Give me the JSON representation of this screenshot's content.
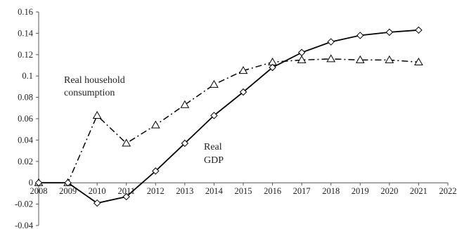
{
  "chart_data": {
    "type": "line",
    "title": "",
    "xlabel": "",
    "ylabel": "",
    "x": [
      2008,
      2009,
      2010,
      2011,
      2012,
      2013,
      2014,
      2015,
      2016,
      2017,
      2018,
      2019,
      2020,
      2021
    ],
    "xlim": [
      2008,
      2022
    ],
    "ylim": [
      -0.04,
      0.16
    ],
    "x_ticks": [
      "2008",
      "2009",
      "2010",
      "2011",
      "2012",
      "2013",
      "2014",
      "2015",
      "2016",
      "2017",
      "2018",
      "2019",
      "2020",
      "2021",
      "2022"
    ],
    "y_ticks": [
      "-0.04",
      "-0.02",
      "0",
      "0.02",
      "0.04",
      "0.06",
      "0.08",
      "0.1",
      "0.12",
      "0.14",
      "0.16"
    ],
    "grid": false,
    "series": [
      {
        "name": "Real household consumption",
        "label_lines": [
          "Real household",
          "consumption"
        ],
        "line_style": "dash-dot",
        "marker": "triangle",
        "color": "#000000",
        "values": [
          0,
          0,
          0.063,
          0.037,
          0.054,
          0.073,
          0.092,
          0.105,
          0.113,
          0.115,
          0.116,
          0.115,
          0.115,
          0.113
        ]
      },
      {
        "name": "Real GDP",
        "label_lines": [
          "Real",
          "GDP"
        ],
        "line_style": "solid",
        "marker": "diamond",
        "color": "#000000",
        "values": [
          0,
          0,
          -0.019,
          -0.013,
          0.011,
          0.037,
          0.063,
          0.085,
          0.108,
          0.122,
          0.132,
          0.138,
          0.141,
          0.143
        ]
      }
    ]
  }
}
